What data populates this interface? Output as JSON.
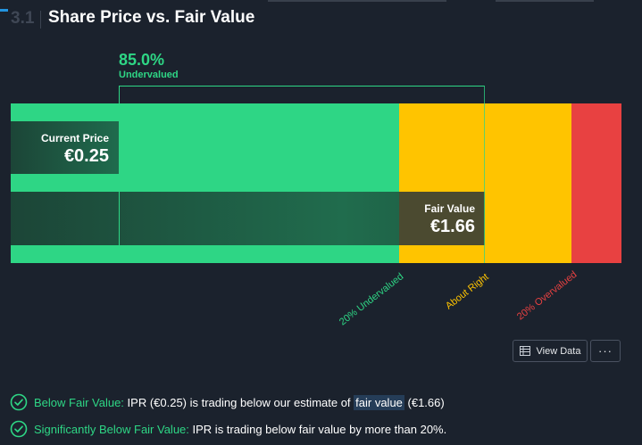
{
  "section": {
    "number": "3.1",
    "title": "Share Price vs. Fair Value"
  },
  "valuation": {
    "percent": "85.0%",
    "status": "Undervalued"
  },
  "current_price": {
    "label": "Current Price",
    "value": "€0.25"
  },
  "fair_value": {
    "label": "Fair Value",
    "value": "€1.66"
  },
  "zones": [
    {
      "label": "20% Undervalued",
      "color": "#2ed685"
    },
    {
      "label": "About Right",
      "color": "#ffc400"
    },
    {
      "label": "20% Overvalued",
      "color": "#e84141"
    }
  ],
  "actions": {
    "view_data": "View Data",
    "more": "···"
  },
  "checks": [
    {
      "label": "Below Fair Value:",
      "text_before": " IPR (€0.25) is trading below our estimate of ",
      "link": "fair value",
      "text_after": " (€1.66)"
    },
    {
      "label": "Significantly Below Fair Value:",
      "text_before": " IPR is trading below fair value by more than 20%.",
      "link": "",
      "text_after": ""
    }
  ],
  "colors": {
    "background": "#1b222d",
    "green": "#2ed685",
    "yellow": "#ffc400",
    "red": "#e84141"
  }
}
